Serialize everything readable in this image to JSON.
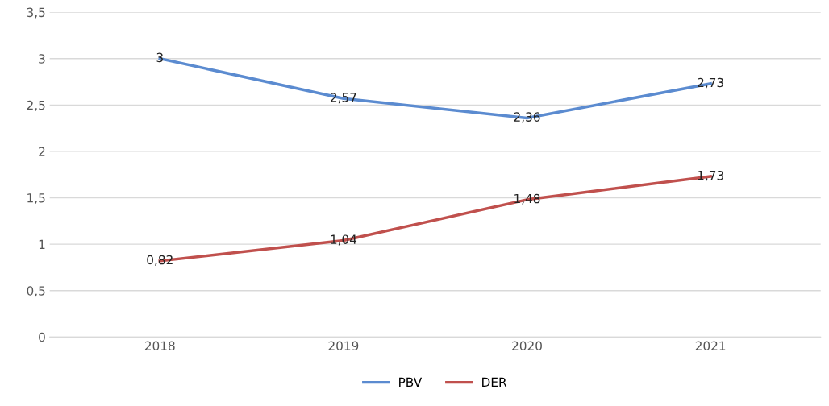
{
  "chart_data": {
    "type": "line",
    "categories": [
      "2018",
      "2019",
      "2020",
      "2021"
    ],
    "series": [
      {
        "name": "PBV",
        "color": "#5b8bd0",
        "values": [
          3,
          2.57,
          2.36,
          2.73
        ],
        "value_labels": [
          "3",
          "2,57",
          "2,36",
          "2,73"
        ]
      },
      {
        "name": "DER",
        "color": "#c0504d",
        "values": [
          0.82,
          1.04,
          1.48,
          1.73
        ],
        "value_labels": [
          "0,82",
          "1,04",
          "1,48",
          "1,73"
        ]
      }
    ],
    "ylim": [
      0,
      3.5
    ],
    "yticks": [
      0,
      {
        "value": 0.5,
        "label": "0,5"
      },
      1,
      {
        "value": 1.5,
        "label": "1,5"
      },
      2,
      {
        "value": 2.5,
        "label": "2,5"
      },
      3,
      {
        "value": 3.5,
        "label": "3,5"
      }
    ],
    "grid": "y",
    "legend": "bottom",
    "marker": "none",
    "line_style": "solid"
  }
}
